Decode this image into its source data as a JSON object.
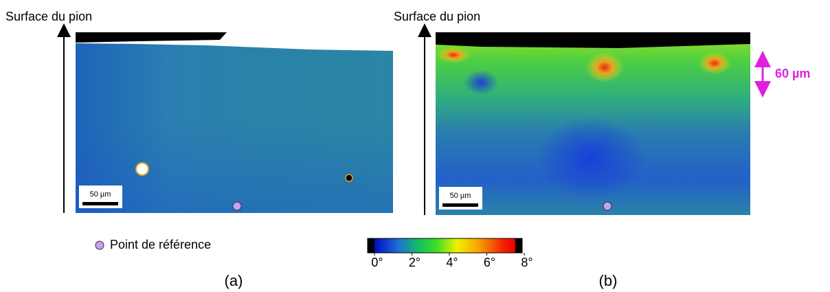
{
  "panels": [
    {
      "surface_label": "Surface du pion",
      "scale_bar": "50 µm",
      "caption": "(a)"
    },
    {
      "surface_label": "Surface du pion",
      "scale_bar": "50 µm",
      "caption": "(b)",
      "depth_label": "60 µm"
    }
  ],
  "legend": {
    "reference_point": "Point de référence"
  },
  "colorbar": {
    "range": [
      0,
      8
    ],
    "ticks": [
      {
        "value": 0,
        "label": "0°"
      },
      {
        "value": 2,
        "label": "2°"
      },
      {
        "value": 4,
        "label": "4°"
      },
      {
        "value": 6,
        "label": "6°"
      },
      {
        "value": 8,
        "label": "8°"
      }
    ]
  }
}
